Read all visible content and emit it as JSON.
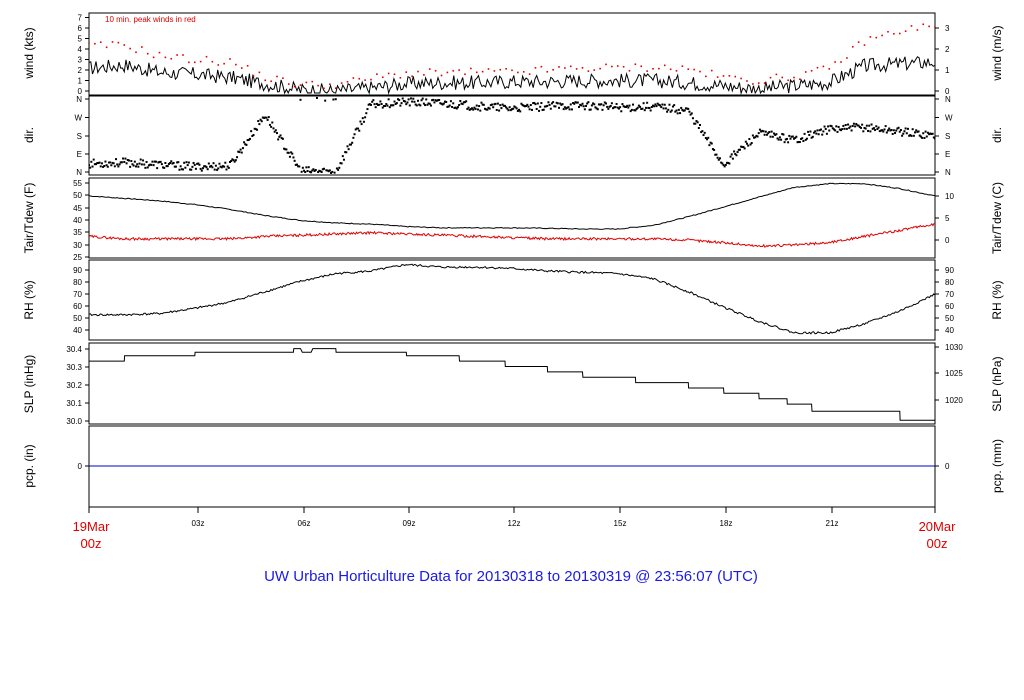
{
  "title": "UW Urban Horticulture Data for 20130318  to  20130319 @ 23:56:07  (UTC)",
  "time_axis": {
    "ticks": [
      "03z",
      "06z",
      "09z",
      "12z",
      "15z",
      "18z",
      "21z"
    ],
    "start_label": [
      "19Mar",
      "00z"
    ],
    "end_label": [
      "20Mar",
      "00z"
    ]
  },
  "colors": {
    "main": "#000000",
    "peak": "#e00000",
    "dew": "#e00000",
    "precip": "#0000cc",
    "title": "#1a1ae6",
    "dates": "#e00000"
  },
  "chart_data": [
    {
      "type": "line",
      "name": "wind",
      "left_label": "wind (kts)",
      "right_label": "wind (m/s)",
      "annotation": "10 min. peak winds in red",
      "left_ticks": [
        "0",
        "1",
        "2",
        "3",
        "4",
        "5",
        "6",
        "7"
      ],
      "right_ticks": [
        "0",
        "1",
        "2",
        "3"
      ],
      "ylim": [
        0,
        7.5
      ],
      "x": [
        0,
        1,
        2,
        3,
        4,
        5,
        6,
        7,
        8,
        9,
        10,
        11,
        12,
        13,
        14,
        15,
        16,
        17,
        18,
        19,
        20,
        21,
        22,
        23,
        24
      ],
      "series": [
        {
          "values": [
            2.4,
            2.7,
            2.0,
            1.8,
            1.5,
            0.9,
            0.3,
            0.2,
            0.5,
            0.9,
            1.0,
            1.0,
            1.1,
            1.1,
            1.2,
            1.2,
            1.2,
            1.0,
            0.7,
            0.4,
            0.7,
            1.0,
            2.6,
            2.8,
            3.0
          ]
        },
        {
          "values": [
            4.5,
            4.6,
            3.6,
            3.2,
            3.0,
            1.5,
            0.8,
            0.8,
            1.4,
            1.9,
            1.9,
            2.0,
            2.0,
            2.2,
            2.4,
            2.4,
            2.5,
            2.3,
            1.5,
            1.2,
            1.6,
            2.3,
            5.0,
            6.0,
            6.5
          ]
        }
      ]
    },
    {
      "type": "scatter",
      "name": "direction",
      "left_label": "dir.",
      "right_label": "dir.",
      "left_ticks": [
        "N",
        "E",
        "S",
        "W",
        "N"
      ],
      "right_ticks": [
        "N",
        "E",
        "S",
        "W",
        "N"
      ],
      "ylim": [
        0,
        360
      ],
      "x": [
        0,
        1,
        2,
        3,
        4,
        5,
        6,
        7,
        8,
        9,
        10,
        11,
        12,
        13,
        14,
        15,
        16,
        17,
        18,
        19,
        20,
        21,
        22,
        23,
        24
      ],
      "values": [
        45,
        50,
        40,
        30,
        35,
        280,
        10,
        5,
        330,
        340,
        335,
        320,
        310,
        320,
        325,
        315,
        320,
        300,
        40,
        190,
        160,
        210,
        220,
        200,
        180
      ]
    },
    {
      "type": "line",
      "name": "temperature",
      "left_label": "Tair/Tdew (F)",
      "right_label": "Tair/Tdew (C)",
      "left_ticks": [
        "25",
        "30",
        "35",
        "40",
        "45",
        "50",
        "55"
      ],
      "right_ticks": [
        "0",
        "5",
        "10"
      ],
      "ylim": [
        25,
        56
      ],
      "x": [
        0,
        1,
        2,
        3,
        4,
        5,
        6,
        7,
        8,
        9,
        10,
        11,
        12,
        13,
        14,
        15,
        16,
        17,
        18,
        19,
        20,
        21,
        22,
        23,
        24
      ],
      "series": [
        {
          "values": [
            49.5,
            48.5,
            47.5,
            46,
            44,
            41.5,
            39.5,
            38.5,
            38,
            37,
            36.5,
            36.5,
            36.5,
            36.3,
            36,
            36,
            37.5,
            41,
            45,
            49,
            53,
            54.5,
            54.5,
            52.5,
            49.5
          ]
        },
        {
          "values": [
            33,
            32,
            32,
            32,
            32,
            33,
            33.5,
            34,
            34.5,
            34,
            33.5,
            33,
            32.5,
            32,
            32,
            32,
            32,
            31.5,
            30.5,
            29,
            29.5,
            30.5,
            33,
            35.5,
            38
          ]
        }
      ]
    },
    {
      "type": "line",
      "name": "relative-humidity",
      "left_label": "RH (%)",
      "right_label": "RH (%)",
      "left_ticks": [
        "40",
        "50",
        "60",
        "70",
        "80",
        "90"
      ],
      "right_ticks": [
        "40",
        "50",
        "60",
        "70",
        "80",
        "90"
      ],
      "ylim": [
        34,
        93
      ],
      "x": [
        0,
        1,
        2,
        3,
        4,
        5,
        6,
        7,
        8,
        9,
        10,
        11,
        12,
        13,
        14,
        15,
        16,
        17,
        18,
        19,
        20,
        21,
        22,
        23,
        24
      ],
      "values": [
        52,
        52,
        53,
        57,
        62,
        70,
        78,
        84,
        86,
        91,
        89,
        89,
        88,
        86,
        85,
        84,
        80,
        70,
        58,
        47,
        38,
        38,
        45,
        55,
        68
      ]
    },
    {
      "type": "line",
      "name": "sea-level-pressure",
      "left_label": "SLP (inHg)",
      "right_label": "SLP (hPa)",
      "left_ticks": [
        "30.0",
        "30.1",
        "30.2",
        "30.3",
        "30.4"
      ],
      "right_ticks": [
        "1020",
        "1025",
        "1030"
      ],
      "ylim": [
        29.99,
        30.42
      ],
      "x": [
        0,
        1,
        1.01,
        3,
        3.01,
        5.8,
        5.81,
        6.0,
        6.05,
        6.3,
        6.35,
        7.0,
        7.01,
        9.0,
        9.01,
        10.5,
        10.51,
        11.8,
        11.81,
        13.0,
        13.01,
        14.0,
        14.01,
        15.5,
        15.51,
        17.0,
        17.01,
        18.0,
        18.01,
        19.0,
        19.01,
        19.8,
        19.81,
        20.5,
        20.51,
        23.0,
        23.01,
        24
      ],
      "values": [
        30.33,
        30.33,
        30.36,
        30.36,
        30.38,
        30.38,
        30.4,
        30.4,
        30.38,
        30.38,
        30.4,
        30.4,
        30.38,
        30.38,
        30.36,
        30.36,
        30.33,
        30.33,
        30.3,
        30.3,
        30.27,
        30.27,
        30.24,
        30.24,
        30.21,
        30.21,
        30.18,
        30.18,
        30.15,
        30.15,
        30.12,
        30.12,
        30.09,
        30.09,
        30.05,
        30.05,
        30.0,
        30.0
      ]
    },
    {
      "type": "line",
      "name": "precipitation",
      "left_label": "pcp. (in)",
      "right_label": "pcp. (mm)",
      "left_ticks": [
        "0"
      ],
      "right_ticks": [
        "0"
      ],
      "ylim": [
        -1,
        1
      ],
      "x": [
        0,
        24
      ],
      "values": [
        0,
        0
      ]
    }
  ]
}
